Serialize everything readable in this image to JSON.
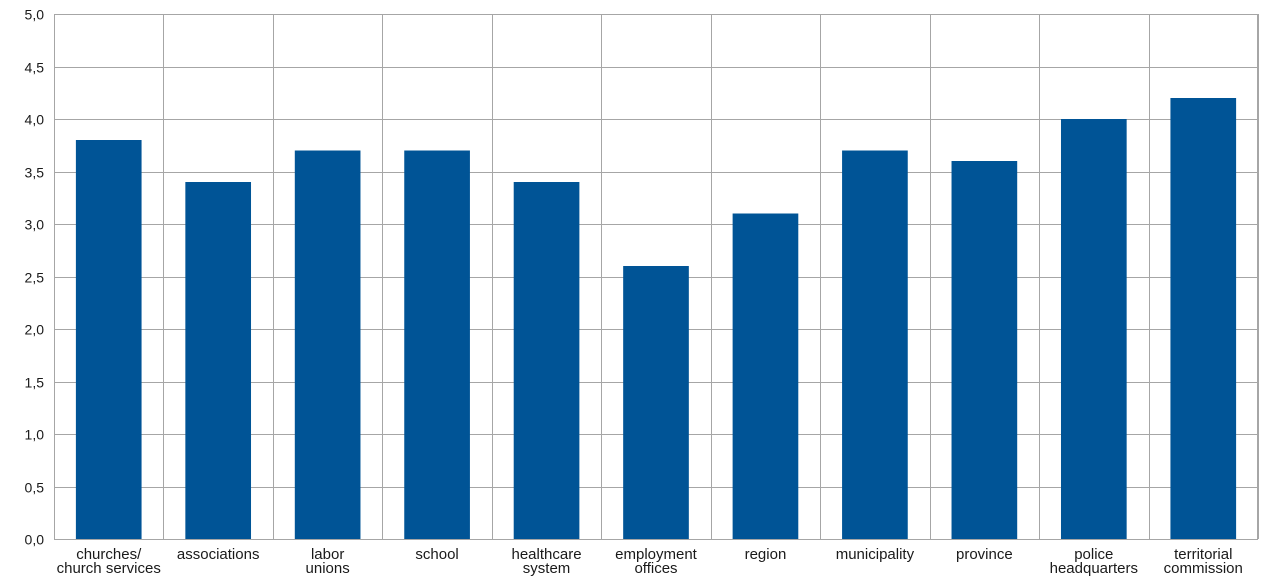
{
  "chart_data": {
    "type": "bar",
    "categories": [
      [
        "churches/",
        "church services"
      ],
      [
        "associations"
      ],
      [
        "labor",
        "unions"
      ],
      [
        "school"
      ],
      [
        "healthcare",
        "system"
      ],
      [
        "employment",
        "offices"
      ],
      [
        "region"
      ],
      [
        "municipality"
      ],
      [
        "province"
      ],
      [
        "police",
        "headquarters"
      ],
      [
        "territorial",
        "commission"
      ]
    ],
    "values": [
      3.8,
      3.4,
      3.7,
      3.7,
      3.4,
      2.6,
      3.1,
      3.7,
      3.6,
      4.0,
      4.2
    ],
    "y_ticks": [
      "0,0",
      "0,5",
      "1,0",
      "1,5",
      "2,0",
      "2,5",
      "3,0",
      "3,5",
      "4,0",
      "4,5",
      "5,0"
    ],
    "ylim": [
      0,
      5
    ],
    "y_step": 0.5,
    "title": "",
    "xlabel": "",
    "ylabel": "",
    "grid": {
      "horizontal": true,
      "vertical": true
    },
    "legend": "none",
    "colors": {
      "bar": "#005496",
      "grid": "#a6a6a6",
      "text": "#1a1a1a"
    }
  }
}
